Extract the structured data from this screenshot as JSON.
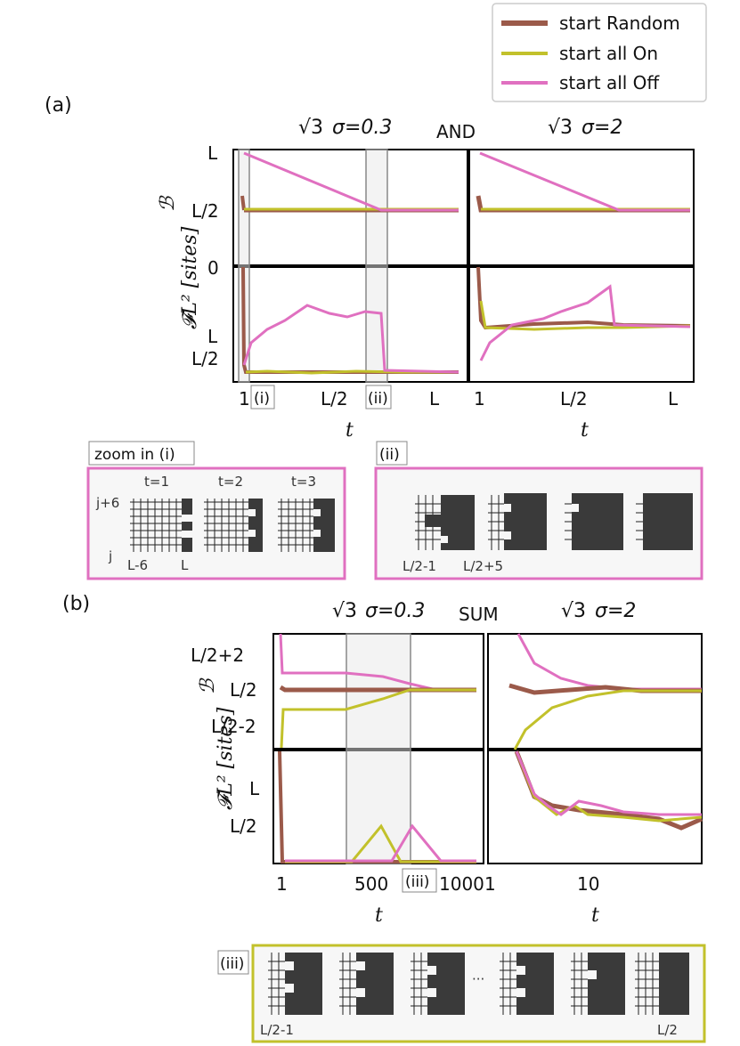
{
  "colors": {
    "random": "#9b5a4a",
    "on": "#c2c12b",
    "off": "#e070c0",
    "axis": "#000000",
    "dark": "#3a3a3a",
    "boxA": "#e070c0",
    "boxB": "#c2c12b"
  },
  "legend": {
    "items": [
      {
        "key": "random",
        "label": "start Random"
      },
      {
        "key": "on",
        "label": "start all On"
      },
      {
        "key": "off",
        "label": "start all Off"
      }
    ]
  },
  "panel_a": {
    "label": "(a)",
    "title_left": "σ=0.3",
    "title_mid": "AND",
    "title_right": "σ=2",
    "sqrt3": "√3"
  },
  "panel_b": {
    "label": "(b)",
    "title_left": "σ=0.3",
    "title_mid": "SUM",
    "title_right": "σ=2",
    "sqrt3": "√3"
  },
  "zoom_i": {
    "tag": "zoom in (i)",
    "t1": "t=1",
    "t2": "t=2",
    "t3": "t=3",
    "row_top": "j+6",
    "row_bot": "j",
    "col_l": "L-6",
    "col_r": "L"
  },
  "zoom_ii": {
    "tag": "(ii)",
    "col_a": "L/2-1",
    "col_b": "L/2+5"
  },
  "zoom_iii": {
    "tag": "(iii)",
    "ellipsis": "···",
    "col_l": "L/2-1",
    "col_r": "L/2"
  },
  "chart_data": [
    {
      "type": "line",
      "panel": "a-left",
      "title": "√3σ=0.3 AND",
      "ylabel_top": "ℬ",
      "ylabel_bottom": "𝓕L² [sites]",
      "xlabel": "t",
      "x_ticks": [
        "1",
        "L/2",
        "L"
      ],
      "x_markers": [
        "(i)",
        "(ii)"
      ],
      "top_y_ticks": [
        "L",
        "L/2",
        "0"
      ],
      "bottom_y_ticks": [
        "L",
        "L/2"
      ],
      "series": [
        {
          "name": "start Random",
          "B": "L/2",
          "F": "≈0"
        },
        {
          "name": "start all On",
          "B": "L/2",
          "F": "≈0"
        },
        {
          "name": "start all Off",
          "B": "L → L/2 at t=L/2",
          "F": "rises to ≈1.3L then drops at t=L/2"
        }
      ]
    },
    {
      "type": "line",
      "panel": "a-right",
      "title": "√3σ=2",
      "xlabel": "t",
      "x_ticks": [
        "1",
        "L/2",
        "L"
      ],
      "series": [
        {
          "name": "start Random",
          "B": "L/2",
          "F": "≈L"
        },
        {
          "name": "start all On",
          "B": "L/2",
          "F": "≈L"
        },
        {
          "name": "start all Off",
          "B": "L → L/2",
          "F": "rises then drops to ≈L"
        }
      ]
    },
    {
      "type": "line",
      "panel": "b-left",
      "title": "√3σ=0.3 SUM",
      "ylabel_top": "ℬ",
      "ylabel_bottom": "𝓕L² [sites]",
      "xlabel": "t",
      "x_ticks": [
        "1",
        "500",
        "1000"
      ],
      "x_markers": [
        "(iii)"
      ],
      "top_y_ticks": [
        "L/2+2",
        "L/2",
        "L/2-2"
      ],
      "bottom_y_ticks": [
        "L",
        "L/2"
      ]
    },
    {
      "type": "line",
      "panel": "b-right",
      "title": "√3σ=2",
      "xlabel": "t",
      "x_ticks": [
        "1",
        "10"
      ]
    }
  ]
}
